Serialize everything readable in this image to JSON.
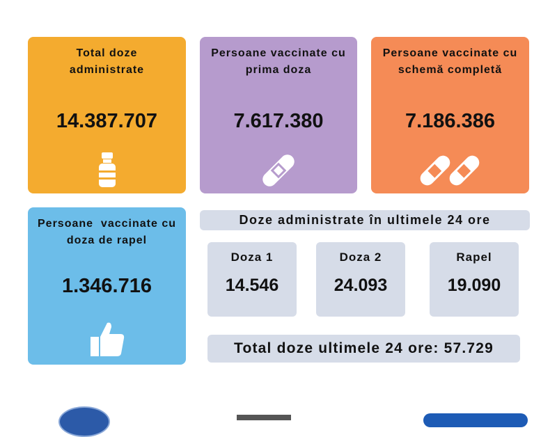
{
  "cards": [
    {
      "title": "Total doze administrate",
      "value": "14.387.707",
      "icon": "vaccine-vial-icon",
      "color": "#f4ab2f"
    },
    {
      "title": "Persoane vaccinate cu prima doza",
      "value": "7.617.380",
      "icon": "bandage-icon",
      "color": "#b69bcd"
    },
    {
      "title": "Persoane vaccinate cu schemă completă",
      "value": "7.186.386",
      "icon": "double-bandage-icon",
      "color": "#f58b56"
    },
    {
      "title": "Persoane  vaccinate cu doza de rapel",
      "value": "1.346.716",
      "icon": "thumbs-up-icon",
      "color": "#6cbde9"
    }
  ],
  "last24": {
    "heading": "Doze administrate în ultimele 24 ore",
    "items": [
      {
        "label": "Doza 1",
        "value": "14.546"
      },
      {
        "label": "Doza 2",
        "value": "24.093"
      },
      {
        "label": "Rapel",
        "value": "19.090"
      }
    ],
    "total": "Total doze ultimele 24 ore: 57.729"
  }
}
